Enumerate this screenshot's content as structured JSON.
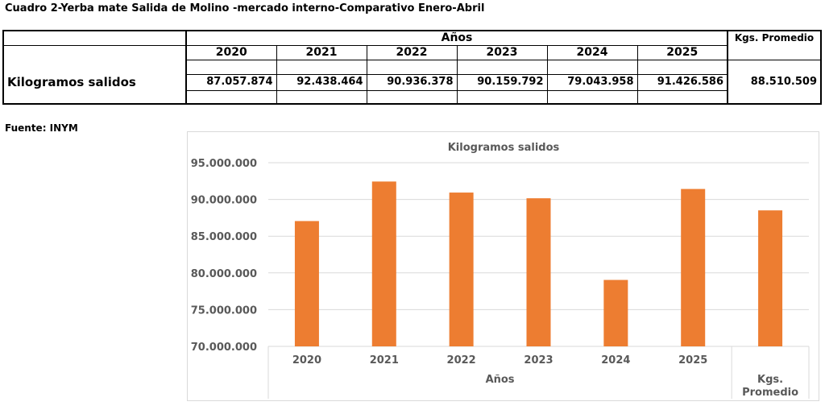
{
  "title": "Cuadro 2-Yerba mate Salida de Molino -mercado interno-Comparativo Enero-Abril",
  "source": "Fuente: INYM",
  "table": {
    "group_header": "Años",
    "avg_header": "Kgs. Promedio",
    "years": [
      "2020",
      "2021",
      "2022",
      "2023",
      "2024",
      "2025"
    ],
    "row_label": "Kilogramos salidos",
    "values": [
      "87.057.874",
      "92.438.464",
      "90.936.378",
      "90.159.792",
      "79.043.958",
      "91.426.586"
    ],
    "average": "88.510.509"
  },
  "chart_data": {
    "type": "bar",
    "title": "Kilogramos salidos",
    "categories": [
      "2020",
      "2021",
      "2022",
      "2023",
      "2024",
      "2025",
      "Kgs. Promedio"
    ],
    "category_groups": [
      {
        "label": "Años",
        "categories": [
          "2020",
          "2021",
          "2022",
          "2023",
          "2024",
          "2025"
        ]
      },
      {
        "label": "Kgs. Promedio",
        "categories": [
          "Kgs. Promedio"
        ]
      }
    ],
    "values": [
      87057874,
      92438464,
      90936378,
      90159792,
      79043958,
      91426586,
      88510509
    ],
    "ylim": [
      70000000,
      95000000
    ],
    "yticks": [
      "70.000.000",
      "75.000.000",
      "80.000.000",
      "85.000.000",
      "90.000.000",
      "95.000.000"
    ],
    "grid": true,
    "bar_color": "#ED7D31",
    "xlabel": "",
    "ylabel": ""
  }
}
